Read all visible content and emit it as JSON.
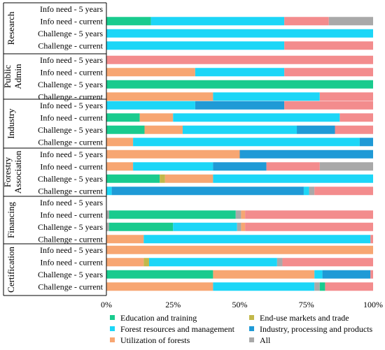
{
  "chart_data": {
    "type": "bar",
    "orientation": "horizontal",
    "stacked": true,
    "normalized": true,
    "title": "",
    "xlabel": "",
    "ylabel": "",
    "xlim": [
      0,
      100
    ],
    "x_ticks": [
      "0%",
      "25%",
      "50%",
      "75%",
      "100%"
    ],
    "grid": false,
    "legend_position": "bottom",
    "series": [
      {
        "key": "edu",
        "name": "Education and training",
        "color": "#19CB8E"
      },
      {
        "key": "mkt",
        "name": "End-use markets and trade",
        "color": "#C2B84A"
      },
      {
        "key": "frm",
        "name": "Forest resources and management",
        "color": "#1CD6F7"
      },
      {
        "key": "ind",
        "name": "Industry, processing and products",
        "color": "#1F9AD6"
      },
      {
        "key": "uti",
        "name": "Utilization of forests",
        "color": "#F7A672"
      },
      {
        "key": "pol",
        "name": "",
        "color": "#F38C8D"
      },
      {
        "key": "all",
        "name": "All",
        "color": "#A9A9A9"
      }
    ],
    "groups": [
      {
        "name": "Research",
        "rows": [
          {
            "label": "Info need - 5 years",
            "segments": []
          },
          {
            "label": "Info need - current",
            "segments": [
              {
                "s": "edu",
                "v": 16.7
              },
              {
                "s": "frm",
                "v": 50
              },
              {
                "s": "pol",
                "v": 16.7
              },
              {
                "s": "all",
                "v": 16.6
              }
            ]
          },
          {
            "label": "Challenge - 5 years",
            "segments": [
              {
                "s": "frm",
                "v": 100
              }
            ]
          },
          {
            "label": "Challenge - current",
            "segments": [
              {
                "s": "frm",
                "v": 66.7
              },
              {
                "s": "pol",
                "v": 33.3
              }
            ]
          }
        ]
      },
      {
        "name": "Public Admin",
        "rows": [
          {
            "label": "Info need - 5 years",
            "segments": [
              {
                "s": "pol",
                "v": 100
              }
            ]
          },
          {
            "label": "Info need - current",
            "segments": [
              {
                "s": "uti",
                "v": 33.3
              },
              {
                "s": "frm",
                "v": 33.4
              },
              {
                "s": "pol",
                "v": 33.3
              }
            ]
          },
          {
            "label": "Challenge - 5 years",
            "segments": [
              {
                "s": "edu",
                "v": 100
              }
            ]
          },
          {
            "label": "Challenge - current",
            "segments": [
              {
                "s": "uti",
                "v": 40
              },
              {
                "s": "frm",
                "v": 40
              },
              {
                "s": "pol",
                "v": 20
              }
            ]
          }
        ]
      },
      {
        "name": "Industry",
        "rows": [
          {
            "label": "Info need - 5 years",
            "segments": [
              {
                "s": "frm",
                "v": 33.3
              },
              {
                "s": "ind",
                "v": 33.4
              },
              {
                "s": "pol",
                "v": 33.3
              }
            ]
          },
          {
            "label": "Info need - current",
            "segments": [
              {
                "s": "edu",
                "v": 12.5
              },
              {
                "s": "uti",
                "v": 12.5
              },
              {
                "s": "frm",
                "v": 62.5
              },
              {
                "s": "pol",
                "v": 12.5
              }
            ]
          },
          {
            "label": "Challenge - 5 years",
            "segments": [
              {
                "s": "edu",
                "v": 14.3
              },
              {
                "s": "uti",
                "v": 14.3
              },
              {
                "s": "frm",
                "v": 42.8
              },
              {
                "s": "ind",
                "v": 14.3
              },
              {
                "s": "pol",
                "v": 14.3
              }
            ]
          },
          {
            "label": "Challenge - current",
            "segments": [
              {
                "s": "uti",
                "v": 10
              },
              {
                "s": "frm",
                "v": 85
              },
              {
                "s": "ind",
                "v": 5
              }
            ]
          }
        ]
      },
      {
        "name": "Forestry Association",
        "rows": [
          {
            "label": "Info need - 5 years",
            "segments": [
              {
                "s": "uti",
                "v": 50
              },
              {
                "s": "ind",
                "v": 50
              }
            ]
          },
          {
            "label": "Info need - current",
            "segments": [
              {
                "s": "uti",
                "v": 10
              },
              {
                "s": "frm",
                "v": 30
              },
              {
                "s": "ind",
                "v": 20
              },
              {
                "s": "pol",
                "v": 20
              },
              {
                "s": "all",
                "v": 20
              }
            ]
          },
          {
            "label": "Challenge - 5 years",
            "segments": [
              {
                "s": "edu",
                "v": 20
              },
              {
                "s": "mkt",
                "v": 2
              },
              {
                "s": "uti",
                "v": 18
              },
              {
                "s": "frm",
                "v": 60
              }
            ]
          },
          {
            "label": "Challenge - current",
            "segments": [
              {
                "s": "frm",
                "v": 2
              },
              {
                "s": "ind",
                "v": 72
              },
              {
                "s": "frm",
                "v": 2
              },
              {
                "s": "all",
                "v": 2
              },
              {
                "s": "pol",
                "v": 22
              }
            ]
          }
        ]
      },
      {
        "name": "Financing",
        "rows": [
          {
            "label": "Info need - 5 years",
            "segments": []
          },
          {
            "label": "Info need - current",
            "segments": [
              {
                "s": "all",
                "v": 1
              },
              {
                "s": "edu",
                "v": 47.5
              },
              {
                "s": "all",
                "v": 2
              },
              {
                "s": "uti",
                "v": 1.5
              },
              {
                "s": "pol",
                "v": 48
              }
            ]
          },
          {
            "label": "Challenge - 5 years",
            "segments": [
              {
                "s": "all",
                "v": 1
              },
              {
                "s": "edu",
                "v": 24
              },
              {
                "s": "frm",
                "v": 24
              },
              {
                "s": "all",
                "v": 1.5
              },
              {
                "s": "uti",
                "v": 1.5
              },
              {
                "s": "pol",
                "v": 48
              }
            ]
          },
          {
            "label": "Challenge - current",
            "segments": [
              {
                "s": "uti",
                "v": 14
              },
              {
                "s": "frm",
                "v": 85
              },
              {
                "s": "pol",
                "v": 1
              }
            ]
          }
        ]
      },
      {
        "name": "Certification",
        "rows": [
          {
            "label": "Info need - 5 years",
            "segments": [
              {
                "s": "uti",
                "v": 100
              }
            ]
          },
          {
            "label": "Info need - current",
            "segments": [
              {
                "s": "uti",
                "v": 14
              },
              {
                "s": "mkt",
                "v": 2
              },
              {
                "s": "frm",
                "v": 48
              },
              {
                "s": "all",
                "v": 2
              },
              {
                "s": "pol",
                "v": 34
              }
            ]
          },
          {
            "label": "Challenge - 5 years",
            "segments": [
              {
                "s": "edu",
                "v": 40
              },
              {
                "s": "uti",
                "v": 38
              },
              {
                "s": "frm",
                "v": 3
              },
              {
                "s": "ind",
                "v": 18
              },
              {
                "s": "pol",
                "v": 1
              }
            ]
          },
          {
            "label": "Challenge - current",
            "segments": [
              {
                "s": "uti",
                "v": 40
              },
              {
                "s": "frm",
                "v": 38
              },
              {
                "s": "all",
                "v": 2
              },
              {
                "s": "edu",
                "v": 2
              },
              {
                "s": "pol",
                "v": 18
              }
            ]
          }
        ]
      }
    ]
  }
}
